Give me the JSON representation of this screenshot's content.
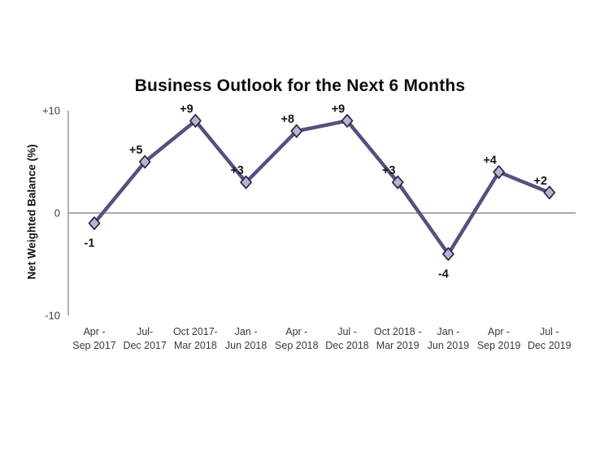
{
  "chart_data": {
    "type": "line",
    "title": "Business Outlook for the Next 6 Months",
    "ylabel": "Net Weighted Balance (%)",
    "xlabel": "",
    "ylim": [
      -10,
      10
    ],
    "grid": "zero-line-only",
    "legend": "none",
    "yticks": [
      {
        "label": "+10",
        "value": 10
      },
      {
        "label": "0",
        "value": 0
      },
      {
        "label": "-10",
        "value": -10
      }
    ],
    "categories": [
      [
        "Apr -",
        "Sep 2017"
      ],
      [
        "Jul-",
        "Dec 2017"
      ],
      [
        "Oct 2017-",
        "Mar 2018"
      ],
      [
        "Jan -",
        "Jun 2018"
      ],
      [
        "Apr -",
        "Sep 2018"
      ],
      [
        "Jul -",
        "Dec 2018"
      ],
      [
        "Oct 2018 -",
        "Mar 2019"
      ],
      [
        "Jan -",
        "Jun 2019"
      ],
      [
        "Apr -",
        "Sep 2019"
      ],
      [
        "Jul -",
        "Dec 2019"
      ]
    ],
    "values": [
      -1,
      5,
      9,
      3,
      8,
      9,
      3,
      -4,
      4,
      2
    ],
    "point_labels": [
      "-1",
      "+5",
      "+9",
      "+3",
      "+8",
      "+9",
      "+3",
      "-4",
      "+4",
      "+2"
    ],
    "colors": {
      "line": "#55507f",
      "marker_fill": "#b9b3d1",
      "marker_stroke": "#2a2740",
      "zero_line": "#8f8f8f",
      "axis_line": "#b3b3b3",
      "text": "#141414",
      "tick_text": "#3a3a3a"
    }
  }
}
